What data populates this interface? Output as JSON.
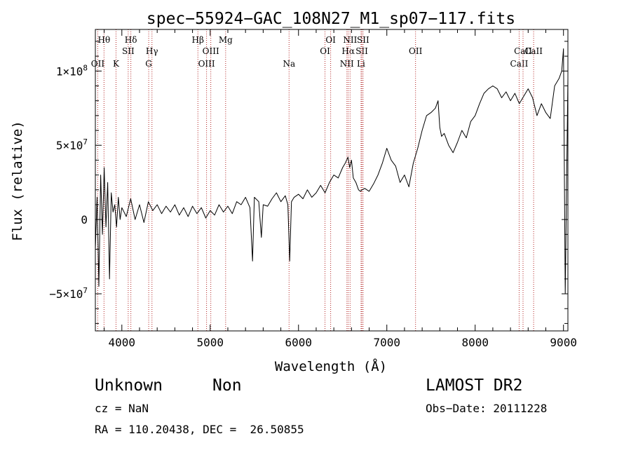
{
  "chart_data": {
    "type": "line",
    "title": "spec−55924−GAC_108N27_M1_sp07−117.fits",
    "xlabel": "Wavelength (Å)",
    "ylabel": "Flux (relative)",
    "xlim": [
      3700,
      9050
    ],
    "ylim": [
      -75000000,
      128000000
    ],
    "x_ticks": [
      {
        "value": 4000,
        "label": "4000"
      },
      {
        "value": 5000,
        "label": "5000"
      },
      {
        "value": 6000,
        "label": "6000"
      },
      {
        "value": 7000,
        "label": "7000"
      },
      {
        "value": 8000,
        "label": "8000"
      },
      {
        "value": 9000,
        "label": "9000"
      }
    ],
    "y_ticks": [
      {
        "value": -50000000,
        "label": "−5×10",
        "exp": "7"
      },
      {
        "value": 0,
        "label": "0",
        "exp": ""
      },
      {
        "value": 50000000,
        "label": "5×10",
        "exp": "7"
      },
      {
        "value": 100000000,
        "label": "1×10",
        "exp": "8"
      }
    ],
    "grid": false,
    "line_color": "#000000",
    "marker_color": "#b22222",
    "series": [
      {
        "x": [
          3700,
          3720,
          3740,
          3760,
          3780,
          3800,
          3820,
          3840,
          3860,
          3880,
          3900,
          3920,
          3940,
          3960,
          3980,
          4000,
          4050,
          4100,
          4150,
          4200,
          4250,
          4300,
          4350,
          4400,
          4450,
          4500,
          4550,
          4600,
          4650,
          4700,
          4750,
          4800,
          4850,
          4900,
          4950,
          5000,
          5050,
          5100,
          5150,
          5200,
          5250,
          5300,
          5350,
          5400,
          5450,
          5480,
          5500,
          5550,
          5580,
          5600,
          5650,
          5700,
          5750,
          5800,
          5850,
          5880,
          5900,
          5920,
          5950,
          6000,
          6050,
          6100,
          6150,
          6200,
          6250,
          6300,
          6350,
          6400,
          6450,
          6500,
          6530,
          6560,
          6580,
          6600,
          6620,
          6650,
          6680,
          6700,
          6720,
          6750,
          6800,
          6850,
          6900,
          6950,
          7000,
          7050,
          7100,
          7150,
          7200,
          7250,
          7300,
          7350,
          7400,
          7450,
          7500,
          7550,
          7580,
          7600,
          7620,
          7650,
          7700,
          7750,
          7800,
          7850,
          7900,
          7950,
          8000,
          8050,
          8100,
          8150,
          8200,
          8250,
          8300,
          8350,
          8400,
          8450,
          8500,
          8550,
          8600,
          8650,
          8700,
          8750,
          8800,
          8850,
          8900,
          8950,
          8980,
          9000,
          9020,
          9050
        ],
        "y": [
          -20000000,
          15000000,
          -45000000,
          30000000,
          -10000000,
          35000000,
          -5000000,
          25000000,
          -40000000,
          18000000,
          5000000,
          10000000,
          -5000000,
          15000000,
          0,
          8000000,
          2000000,
          14000000,
          0,
          10000000,
          -2000000,
          12000000,
          6000000,
          10000000,
          4000000,
          9000000,
          5000000,
          10000000,
          3000000,
          8000000,
          2000000,
          9000000,
          4000000,
          8000000,
          1000000,
          6000000,
          3000000,
          10000000,
          5000000,
          9000000,
          4000000,
          12000000,
          10000000,
          15000000,
          8000000,
          -28000000,
          15000000,
          12000000,
          -12000000,
          10000000,
          9000000,
          14000000,
          18000000,
          12000000,
          16000000,
          10000000,
          -28000000,
          12000000,
          15000000,
          17000000,
          14000000,
          20000000,
          15000000,
          18000000,
          23000000,
          18000000,
          25000000,
          30000000,
          28000000,
          35000000,
          38000000,
          42000000,
          35000000,
          40000000,
          28000000,
          25000000,
          20000000,
          19000000,
          20000000,
          21000000,
          19000000,
          24000000,
          30000000,
          38000000,
          48000000,
          40000000,
          36000000,
          25000000,
          30000000,
          22000000,
          38000000,
          48000000,
          60000000,
          70000000,
          72000000,
          75000000,
          80000000,
          62000000,
          56000000,
          58000000,
          50000000,
          45000000,
          52000000,
          60000000,
          55000000,
          66000000,
          70000000,
          78000000,
          85000000,
          88000000,
          90000000,
          88000000,
          82000000,
          86000000,
          80000000,
          85000000,
          78000000,
          83000000,
          88000000,
          82000000,
          70000000,
          78000000,
          72000000,
          68000000,
          90000000,
          95000000,
          100000000,
          115000000,
          -50000000,
          95000000
        ]
      }
    ],
    "line_markers": [
      {
        "wavelength": 3727,
        "label": "OII",
        "row": 3
      },
      {
        "wavelength": 3798,
        "label": "Hθ",
        "row": 0
      },
      {
        "wavelength": 3934,
        "label": "K",
        "row": 3
      },
      {
        "wavelength": 4072,
        "label": "SII",
        "row": 1
      },
      {
        "wavelength": 4102,
        "label": "Hδ",
        "row": 0
      },
      {
        "wavelength": 4304,
        "label": "G",
        "row": 3
      },
      {
        "wavelength": 4341,
        "label": "Hγ",
        "row": 2
      },
      {
        "wavelength": 4861,
        "label": "Hβ",
        "row": 0
      },
      {
        "wavelength": 4959,
        "label": "OIII",
        "row": 3
      },
      {
        "wavelength": 5007,
        "label": "OIII",
        "row": 2
      },
      {
        "wavelength": 5175,
        "label": "Mg",
        "row": 0
      },
      {
        "wavelength": 5893,
        "label": "Na",
        "row": 3
      },
      {
        "wavelength": 6300,
        "label": "OI",
        "row": 2
      },
      {
        "wavelength": 6364,
        "label": "OI",
        "row": 0
      },
      {
        "wavelength": 6548,
        "label": "NII",
        "row": 3
      },
      {
        "wavelength": 6563,
        "label": "Hα",
        "row": 2
      },
      {
        "wavelength": 6584,
        "label": "NII",
        "row": 0
      },
      {
        "wavelength": 6708,
        "label": "Li",
        "row": 3
      },
      {
        "wavelength": 6717,
        "label": "SII",
        "row": 2
      },
      {
        "wavelength": 6731,
        "label": "SII",
        "row": 0
      },
      {
        "wavelength": 7325,
        "label": "OII",
        "row": 2
      },
      {
        "wavelength": 8498,
        "label": "CaII",
        "row": 3
      },
      {
        "wavelength": 8542,
        "label": "CaII",
        "row": 2
      },
      {
        "wavelength": 8662,
        "label": "CaII",
        "row": 1
      }
    ]
  },
  "info": {
    "class": "Unknown",
    "subclass": "Non",
    "survey": "LAMOST DR2",
    "cz": "cz = NaN",
    "obs_date": "Obs−Date: 20111228",
    "coords": "RA = 110.20438, DEC =  26.50855"
  }
}
